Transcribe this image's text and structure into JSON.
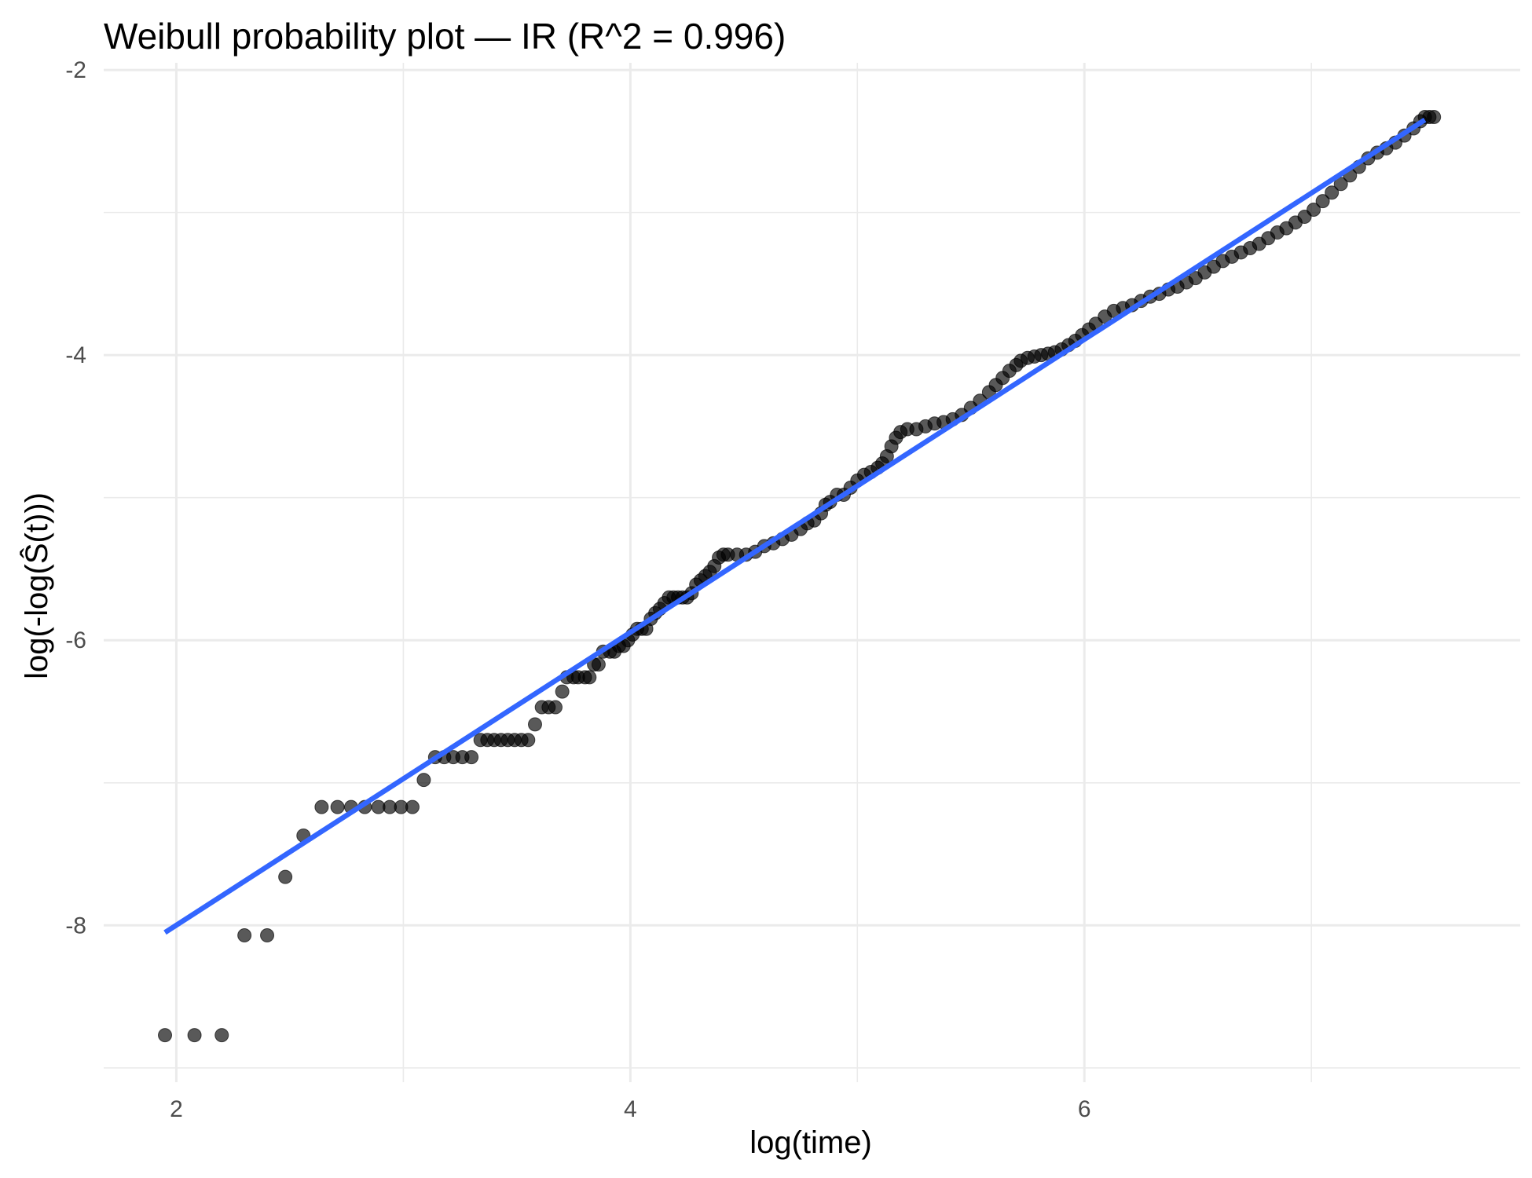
{
  "chart_data": {
    "type": "scatter",
    "title": "Weibull probability plot — IR  (R^2 = 0.996)",
    "xlabel": "log(time)",
    "ylabel": "log(-log(Ŝ(t)))",
    "xlim": [
      1.68,
      7.92
    ],
    "ylim": [
      -9.1,
      -1.95
    ],
    "x_ticks": [
      2,
      4,
      6
    ],
    "x_tick_labels": [
      "2",
      "4",
      "6"
    ],
    "y_ticks": [
      -2,
      -4,
      -6,
      -8
    ],
    "y_tick_labels": [
      "-2",
      "-4",
      "-6",
      "-8"
    ],
    "grid": true,
    "legend": "none",
    "colors": {
      "points": "#000000",
      "fit_line": "#3366ff"
    },
    "fit_line": {
      "x": [
        1.95,
        7.5
      ],
      "y": [
        -8.05,
        -2.35
      ]
    },
    "series": [
      {
        "values": [
          [
            1.95,
            -8.77
          ],
          [
            2.08,
            -8.77
          ],
          [
            2.2,
            -8.77
          ],
          [
            2.3,
            -8.07
          ],
          [
            2.4,
            -8.07
          ],
          [
            2.48,
            -7.66
          ],
          [
            2.56,
            -7.37
          ],
          [
            2.64,
            -7.17
          ],
          [
            2.71,
            -7.17
          ],
          [
            2.77,
            -7.17
          ],
          [
            2.83,
            -7.17
          ],
          [
            2.89,
            -7.17
          ],
          [
            2.94,
            -7.17
          ],
          [
            2.99,
            -7.17
          ],
          [
            3.04,
            -7.17
          ],
          [
            3.09,
            -6.98
          ],
          [
            3.14,
            -6.82
          ],
          [
            3.18,
            -6.82
          ],
          [
            3.22,
            -6.82
          ],
          [
            3.26,
            -6.82
          ],
          [
            3.3,
            -6.82
          ],
          [
            3.34,
            -6.7
          ],
          [
            3.37,
            -6.7
          ],
          [
            3.4,
            -6.7
          ],
          [
            3.43,
            -6.7
          ],
          [
            3.46,
            -6.7
          ],
          [
            3.49,
            -6.7
          ],
          [
            3.52,
            -6.7
          ],
          [
            3.55,
            -6.7
          ],
          [
            3.58,
            -6.59
          ],
          [
            3.61,
            -6.47
          ],
          [
            3.64,
            -6.47
          ],
          [
            3.67,
            -6.47
          ],
          [
            3.7,
            -6.36
          ],
          [
            3.72,
            -6.26
          ],
          [
            3.75,
            -6.26
          ],
          [
            3.77,
            -6.26
          ],
          [
            3.8,
            -6.26
          ],
          [
            3.82,
            -6.26
          ],
          [
            3.84,
            -6.17
          ],
          [
            3.86,
            -6.17
          ],
          [
            3.88,
            -6.08
          ],
          [
            3.91,
            -6.08
          ],
          [
            3.93,
            -6.08
          ],
          [
            3.95,
            -6.04
          ],
          [
            3.97,
            -6.04
          ],
          [
            3.99,
            -6.0
          ],
          [
            4.01,
            -5.96
          ],
          [
            4.03,
            -5.92
          ],
          [
            4.05,
            -5.92
          ],
          [
            4.07,
            -5.92
          ],
          [
            4.09,
            -5.85
          ],
          [
            4.11,
            -5.81
          ],
          [
            4.13,
            -5.78
          ],
          [
            4.15,
            -5.74
          ],
          [
            4.17,
            -5.7
          ],
          [
            4.19,
            -5.7
          ],
          [
            4.21,
            -5.7
          ],
          [
            4.23,
            -5.7
          ],
          [
            4.25,
            -5.7
          ],
          [
            4.27,
            -5.67
          ],
          [
            4.29,
            -5.61
          ],
          [
            4.31,
            -5.58
          ],
          [
            4.33,
            -5.55
          ],
          [
            4.35,
            -5.52
          ],
          [
            4.37,
            -5.48
          ],
          [
            4.39,
            -5.42
          ],
          [
            4.41,
            -5.4
          ],
          [
            4.43,
            -5.4
          ],
          [
            4.47,
            -5.4
          ],
          [
            4.51,
            -5.4
          ],
          [
            4.55,
            -5.38
          ],
          [
            4.59,
            -5.34
          ],
          [
            4.63,
            -5.32
          ],
          [
            4.67,
            -5.29
          ],
          [
            4.71,
            -5.26
          ],
          [
            4.75,
            -5.22
          ],
          [
            4.78,
            -5.18
          ],
          [
            4.81,
            -5.16
          ],
          [
            4.84,
            -5.11
          ],
          [
            4.86,
            -5.05
          ],
          [
            4.88,
            -5.03
          ],
          [
            4.91,
            -4.98
          ],
          [
            4.94,
            -4.98
          ],
          [
            4.97,
            -4.93
          ],
          [
            5.0,
            -4.88
          ],
          [
            5.03,
            -4.84
          ],
          [
            5.06,
            -4.82
          ],
          [
            5.09,
            -4.79
          ],
          [
            5.11,
            -4.76
          ],
          [
            5.13,
            -4.71
          ],
          [
            5.15,
            -4.64
          ],
          [
            5.17,
            -4.58
          ],
          [
            5.19,
            -4.54
          ],
          [
            5.22,
            -4.52
          ],
          [
            5.26,
            -4.52
          ],
          [
            5.3,
            -4.5
          ],
          [
            5.34,
            -4.48
          ],
          [
            5.38,
            -4.47
          ],
          [
            5.42,
            -4.45
          ],
          [
            5.46,
            -4.42
          ],
          [
            5.5,
            -4.37
          ],
          [
            5.54,
            -4.32
          ],
          [
            5.58,
            -4.26
          ],
          [
            5.61,
            -4.21
          ],
          [
            5.64,
            -4.16
          ],
          [
            5.67,
            -4.11
          ],
          [
            5.7,
            -4.07
          ],
          [
            5.72,
            -4.04
          ],
          [
            5.75,
            -4.02
          ],
          [
            5.78,
            -4.01
          ],
          [
            5.81,
            -4.0
          ],
          [
            5.84,
            -3.99
          ],
          [
            5.87,
            -3.98
          ],
          [
            5.9,
            -3.96
          ],
          [
            5.93,
            -3.93
          ],
          [
            5.96,
            -3.9
          ],
          [
            5.99,
            -3.86
          ],
          [
            6.02,
            -3.82
          ],
          [
            6.05,
            -3.78
          ],
          [
            6.09,
            -3.73
          ],
          [
            6.13,
            -3.69
          ],
          [
            6.17,
            -3.67
          ],
          [
            6.21,
            -3.65
          ],
          [
            6.25,
            -3.62
          ],
          [
            6.29,
            -3.59
          ],
          [
            6.33,
            -3.57
          ],
          [
            6.37,
            -3.54
          ],
          [
            6.41,
            -3.52
          ],
          [
            6.45,
            -3.49
          ],
          [
            6.49,
            -3.46
          ],
          [
            6.53,
            -3.42
          ],
          [
            6.57,
            -3.38
          ],
          [
            6.61,
            -3.34
          ],
          [
            6.65,
            -3.31
          ],
          [
            6.69,
            -3.28
          ],
          [
            6.73,
            -3.25
          ],
          [
            6.77,
            -3.22
          ],
          [
            6.81,
            -3.18
          ],
          [
            6.85,
            -3.14
          ],
          [
            6.89,
            -3.11
          ],
          [
            6.93,
            -3.07
          ],
          [
            6.97,
            -3.03
          ],
          [
            7.01,
            -2.98
          ],
          [
            7.05,
            -2.92
          ],
          [
            7.09,
            -2.86
          ],
          [
            7.13,
            -2.8
          ],
          [
            7.17,
            -2.74
          ],
          [
            7.21,
            -2.68
          ],
          [
            7.25,
            -2.62
          ],
          [
            7.29,
            -2.58
          ],
          [
            7.33,
            -2.55
          ],
          [
            7.37,
            -2.51
          ],
          [
            7.41,
            -2.46
          ],
          [
            7.45,
            -2.41
          ],
          [
            7.48,
            -2.36
          ],
          [
            7.5,
            -2.33
          ],
          [
            7.52,
            -2.33
          ],
          [
            7.54,
            -2.33
          ]
        ]
      }
    ]
  }
}
